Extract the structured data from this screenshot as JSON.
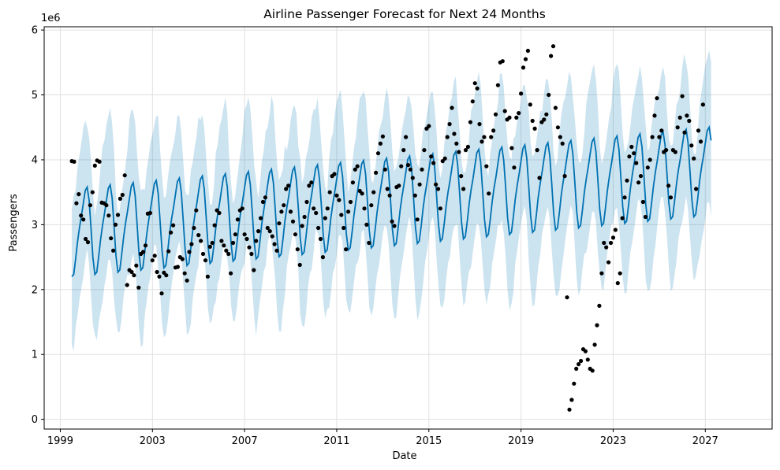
{
  "chart_data": {
    "type": "line",
    "title": "Airline Passenger Forecast for Next 24 Months",
    "xlabel": "Date",
    "ylabel": "Passengers",
    "y_offset_label": "1e6",
    "xlim": [
      1998.3,
      2029.9
    ],
    "ylim": [
      -0.15,
      6.05
    ],
    "x_ticks": [
      1999,
      2003,
      2007,
      2011,
      2015,
      2019,
      2023,
      2027
    ],
    "x_tick_labels": [
      "1999",
      "2003",
      "2007",
      "2011",
      "2015",
      "2019",
      "2023",
      "2027"
    ],
    "y_ticks": [
      0,
      1,
      2,
      3,
      4,
      5,
      6
    ],
    "y_tick_labels": [
      "0",
      "1",
      "2",
      "3",
      "4",
      "5",
      "6"
    ],
    "grid": true,
    "colors": {
      "forecast_line": "#0072b2",
      "uncertainty_band": "#0072b2",
      "observed_points": "#000000",
      "grid": "#e0e0e0"
    },
    "forecast_model": {
      "x_start": 1999.5,
      "x_end": 2027.3,
      "trend_start": 2.9,
      "trend_end": 3.85,
      "seasonal_amplitude": 0.75,
      "band_half_width": 1.05
    },
    "observed": [
      [
        1999.5,
        3.98
      ],
      [
        1999.6,
        3.97
      ],
      [
        1999.7,
        3.33
      ],
      [
        1999.8,
        3.47
      ],
      [
        1999.9,
        3.14
      ],
      [
        2000.0,
        3.08
      ],
      [
        2000.1,
        2.78
      ],
      [
        2000.2,
        2.73
      ],
      [
        2000.3,
        3.3
      ],
      [
        2000.4,
        3.5
      ],
      [
        2000.5,
        3.91
      ],
      [
        2000.6,
        3.99
      ],
      [
        2000.7,
        3.97
      ],
      [
        2000.8,
        3.34
      ],
      [
        2000.9,
        3.33
      ],
      [
        2001.0,
        3.3
      ],
      [
        2001.1,
        3.14
      ],
      [
        2001.2,
        2.79
      ],
      [
        2001.3,
        2.6
      ],
      [
        2001.4,
        3.0
      ],
      [
        2001.5,
        3.15
      ],
      [
        2001.6,
        3.4
      ],
      [
        2001.7,
        3.46
      ],
      [
        2001.8,
        3.76
      ],
      [
        2001.9,
        2.07
      ],
      [
        2002.0,
        2.3
      ],
      [
        2002.1,
        2.27
      ],
      [
        2002.2,
        2.22
      ],
      [
        2002.3,
        2.37
      ],
      [
        2002.4,
        2.03
      ],
      [
        2002.5,
        2.55
      ],
      [
        2002.6,
        2.58
      ],
      [
        2002.7,
        2.68
      ],
      [
        2002.8,
        3.17
      ],
      [
        2002.9,
        3.18
      ],
      [
        2003.0,
        2.45
      ],
      [
        2003.1,
        2.52
      ],
      [
        2003.2,
        2.27
      ],
      [
        2003.3,
        2.2
      ],
      [
        2003.4,
        1.94
      ],
      [
        2003.5,
        2.26
      ],
      [
        2003.6,
        2.22
      ],
      [
        2003.7,
        2.59
      ],
      [
        2003.8,
        2.88
      ],
      [
        2003.9,
        2.99
      ],
      [
        2004.0,
        2.34
      ],
      [
        2004.1,
        2.35
      ],
      [
        2004.2,
        2.5
      ],
      [
        2004.3,
        2.47
      ],
      [
        2004.4,
        2.25
      ],
      [
        2004.5,
        2.14
      ],
      [
        2004.6,
        2.58
      ],
      [
        2004.7,
        2.7
      ],
      [
        2004.8,
        2.95
      ],
      [
        2004.9,
        3.22
      ],
      [
        2005.0,
        2.84
      ],
      [
        2005.1,
        2.75
      ],
      [
        2005.2,
        2.55
      ],
      [
        2005.3,
        2.45
      ],
      [
        2005.4,
        2.2
      ],
      [
        2005.5,
        2.66
      ],
      [
        2005.6,
        2.72
      ],
      [
        2005.7,
        2.99
      ],
      [
        2005.8,
        3.22
      ],
      [
        2005.9,
        3.18
      ],
      [
        2006.0,
        2.75
      ],
      [
        2006.1,
        2.68
      ],
      [
        2006.2,
        2.6
      ],
      [
        2006.3,
        2.55
      ],
      [
        2006.4,
        2.25
      ],
      [
        2006.5,
        2.72
      ],
      [
        2006.6,
        2.85
      ],
      [
        2006.7,
        3.08
      ],
      [
        2006.8,
        3.22
      ],
      [
        2006.9,
        3.25
      ],
      [
        2007.0,
        2.85
      ],
      [
        2007.1,
        2.78
      ],
      [
        2007.2,
        2.65
      ],
      [
        2007.3,
        2.55
      ],
      [
        2007.4,
        2.3
      ],
      [
        2007.5,
        2.75
      ],
      [
        2007.6,
        2.9
      ],
      [
        2007.7,
        3.1
      ],
      [
        2007.8,
        3.35
      ],
      [
        2007.9,
        3.42
      ],
      [
        2008.0,
        2.95
      ],
      [
        2008.1,
        2.9
      ],
      [
        2008.2,
        2.82
      ],
      [
        2008.3,
        2.7
      ],
      [
        2008.4,
        2.6
      ],
      [
        2008.5,
        3.02
      ],
      [
        2008.6,
        3.2
      ],
      [
        2008.7,
        3.3
      ],
      [
        2008.8,
        3.55
      ],
      [
        2008.9,
        3.6
      ],
      [
        2009.0,
        3.2
      ],
      [
        2009.1,
        3.05
      ],
      [
        2009.2,
        2.85
      ],
      [
        2009.3,
        2.62
      ],
      [
        2009.4,
        2.38
      ],
      [
        2009.5,
        2.98
      ],
      [
        2009.6,
        3.12
      ],
      [
        2009.7,
        3.35
      ],
      [
        2009.8,
        3.6
      ],
      [
        2009.9,
        3.65
      ],
      [
        2010.0,
        3.25
      ],
      [
        2010.1,
        3.18
      ],
      [
        2010.2,
        2.95
      ],
      [
        2010.3,
        2.78
      ],
      [
        2010.4,
        2.5
      ],
      [
        2010.5,
        3.1
      ],
      [
        2010.6,
        3.25
      ],
      [
        2010.7,
        3.5
      ],
      [
        2010.8,
        3.75
      ],
      [
        2010.9,
        3.78
      ],
      [
        2011.0,
        3.45
      ],
      [
        2011.1,
        3.38
      ],
      [
        2011.2,
        3.15
      ],
      [
        2011.3,
        2.95
      ],
      [
        2011.4,
        2.62
      ],
      [
        2011.5,
        3.2
      ],
      [
        2011.6,
        3.35
      ],
      [
        2011.7,
        3.65
      ],
      [
        2011.8,
        3.85
      ],
      [
        2011.9,
        3.9
      ],
      [
        2012.0,
        3.52
      ],
      [
        2012.1,
        3.48
      ],
      [
        2012.2,
        3.25
      ],
      [
        2012.3,
        3.0
      ],
      [
        2012.4,
        2.72
      ],
      [
        2012.5,
        3.3
      ],
      [
        2012.6,
        3.5
      ],
      [
        2012.7,
        3.8
      ],
      [
        2012.8,
        4.1
      ],
      [
        2012.9,
        4.25
      ],
      [
        2013.0,
        4.36
      ],
      [
        2013.1,
        3.85
      ],
      [
        2013.2,
        3.55
      ],
      [
        2013.3,
        3.45
      ],
      [
        2013.4,
        3.05
      ],
      [
        2013.5,
        2.98
      ],
      [
        2013.6,
        3.58
      ],
      [
        2013.7,
        3.6
      ],
      [
        2013.8,
        3.9
      ],
      [
        2013.9,
        4.15
      ],
      [
        2014.0,
        4.35
      ],
      [
        2014.1,
        3.92
      ],
      [
        2014.2,
        3.85
      ],
      [
        2014.3,
        3.72
      ],
      [
        2014.4,
        3.45
      ],
      [
        2014.5,
        3.08
      ],
      [
        2014.6,
        3.62
      ],
      [
        2014.7,
        3.85
      ],
      [
        2014.8,
        4.15
      ],
      [
        2014.9,
        4.48
      ],
      [
        2015.0,
        4.52
      ],
      [
        2015.1,
        4.05
      ],
      [
        2015.2,
        3.95
      ],
      [
        2015.3,
        3.62
      ],
      [
        2015.4,
        3.55
      ],
      [
        2015.5,
        3.25
      ],
      [
        2015.6,
        3.98
      ],
      [
        2015.7,
        4.02
      ],
      [
        2015.8,
        4.35
      ],
      [
        2015.9,
        4.55
      ],
      [
        2016.0,
        4.8
      ],
      [
        2016.1,
        4.4
      ],
      [
        2016.2,
        4.25
      ],
      [
        2016.3,
        4.12
      ],
      [
        2016.4,
        3.75
      ],
      [
        2016.5,
        3.55
      ],
      [
        2016.6,
        4.15
      ],
      [
        2016.7,
        4.2
      ],
      [
        2016.8,
        4.58
      ],
      [
        2016.9,
        4.9
      ],
      [
        2017.0,
        5.18
      ],
      [
        2017.1,
        5.1
      ],
      [
        2017.2,
        4.55
      ],
      [
        2017.3,
        4.28
      ],
      [
        2017.4,
        4.35
      ],
      [
        2017.5,
        3.9
      ],
      [
        2017.6,
        3.48
      ],
      [
        2017.7,
        4.35
      ],
      [
        2017.8,
        4.45
      ],
      [
        2017.9,
        4.7
      ],
      [
        2018.0,
        5.15
      ],
      [
        2018.1,
        5.5
      ],
      [
        2018.2,
        5.52
      ],
      [
        2018.3,
        4.75
      ],
      [
        2018.4,
        4.62
      ],
      [
        2018.5,
        4.65
      ],
      [
        2018.6,
        4.18
      ],
      [
        2018.7,
        3.88
      ],
      [
        2018.8,
        4.65
      ],
      [
        2018.9,
        4.72
      ],
      [
        2019.0,
        5.02
      ],
      [
        2019.1,
        5.42
      ],
      [
        2019.2,
        5.55
      ],
      [
        2019.3,
        5.68
      ],
      [
        2019.4,
        4.85
      ],
      [
        2019.5,
        4.6
      ],
      [
        2019.6,
        4.48
      ],
      [
        2019.7,
        4.15
      ],
      [
        2019.8,
        3.72
      ],
      [
        2019.9,
        4.58
      ],
      [
        2020.0,
        4.62
      ],
      [
        2020.1,
        4.7
      ],
      [
        2020.2,
        5.0
      ],
      [
        2020.3,
        5.6
      ],
      [
        2020.4,
        5.75
      ],
      [
        2020.5,
        4.8
      ],
      [
        2020.6,
        4.5
      ],
      [
        2020.7,
        4.35
      ],
      [
        2020.8,
        4.25
      ],
      [
        2020.9,
        3.75
      ],
      [
        2021.0,
        1.88
      ],
      [
        2021.1,
        0.15
      ],
      [
        2021.2,
        0.3
      ],
      [
        2021.3,
        0.55
      ],
      [
        2021.4,
        0.78
      ],
      [
        2021.5,
        0.85
      ],
      [
        2021.6,
        0.9
      ],
      [
        2021.7,
        1.08
      ],
      [
        2021.8,
        1.05
      ],
      [
        2021.9,
        0.92
      ],
      [
        2022.0,
        0.78
      ],
      [
        2022.1,
        0.75
      ],
      [
        2022.2,
        1.15
      ],
      [
        2022.3,
        1.45
      ],
      [
        2022.4,
        1.75
      ],
      [
        2022.5,
        2.25
      ],
      [
        2022.6,
        2.72
      ],
      [
        2022.7,
        2.65
      ],
      [
        2022.8,
        2.42
      ],
      [
        2022.9,
        2.72
      ],
      [
        2023.0,
        2.8
      ],
      [
        2023.1,
        2.92
      ],
      [
        2023.2,
        2.1
      ],
      [
        2023.3,
        2.25
      ],
      [
        2023.4,
        3.1
      ],
      [
        2023.5,
        3.42
      ],
      [
        2023.6,
        3.68
      ],
      [
        2023.7,
        4.05
      ],
      [
        2023.8,
        4.2
      ],
      [
        2023.9,
        4.1
      ],
      [
        2024.0,
        3.95
      ],
      [
        2024.1,
        3.65
      ],
      [
        2024.2,
        3.75
      ],
      [
        2024.3,
        3.35
      ],
      [
        2024.4,
        3.12
      ],
      [
        2024.5,
        3.88
      ],
      [
        2024.6,
        4.0
      ],
      [
        2024.7,
        4.35
      ],
      [
        2024.8,
        4.68
      ],
      [
        2024.9,
        4.95
      ],
      [
        2025.0,
        4.35
      ],
      [
        2025.1,
        4.45
      ],
      [
        2025.2,
        4.12
      ],
      [
        2025.3,
        4.15
      ],
      [
        2025.4,
        3.6
      ],
      [
        2025.5,
        3.42
      ],
      [
        2025.6,
        4.15
      ],
      [
        2025.7,
        4.12
      ],
      [
        2025.8,
        4.5
      ],
      [
        2025.9,
        4.65
      ],
      [
        2026.0,
        4.98
      ],
      [
        2026.1,
        4.42
      ],
      [
        2026.2,
        4.68
      ],
      [
        2026.3,
        4.6
      ],
      [
        2026.4,
        4.22
      ],
      [
        2026.5,
        4.02
      ],
      [
        2026.6,
        3.55
      ],
      [
        2026.7,
        4.45
      ],
      [
        2026.8,
        4.28
      ],
      [
        2026.9,
        4.85
      ]
    ]
  }
}
